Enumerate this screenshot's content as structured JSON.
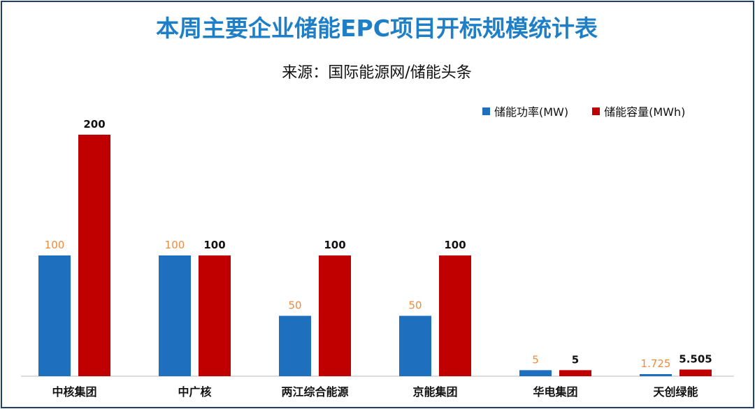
{
  "title": "本周主要企业储能EPC项目开标规模统计表",
  "subtitle": "来源：国际能源网/储能头条",
  "colors": {
    "power": "#1f6fbf",
    "capacity": "#c00000",
    "power_label": "#f08a3c",
    "capacity_label": "#111111",
    "title": "#1f7fc6"
  },
  "chart_data": {
    "type": "bar",
    "categories": [
      "中核集团",
      "中广核",
      "两江综合能源",
      "京能集团",
      "华电集团",
      "天创绿能"
    ],
    "series": [
      {
        "name": "储能功率(MW)",
        "values": [
          100,
          100,
          50,
          50,
          5,
          1.725
        ],
        "labels": [
          "100",
          "100",
          "50",
          "50",
          "5",
          "1.725"
        ]
      },
      {
        "name": "储能容量(MWh)",
        "values": [
          200,
          100,
          100,
          100,
          5,
          5.505
        ],
        "labels": [
          "200",
          "100",
          "100",
          "100",
          "5",
          "5.505"
        ]
      }
    ],
    "ylim": [
      0,
      200
    ],
    "grid": false,
    "legend": "top-right"
  }
}
